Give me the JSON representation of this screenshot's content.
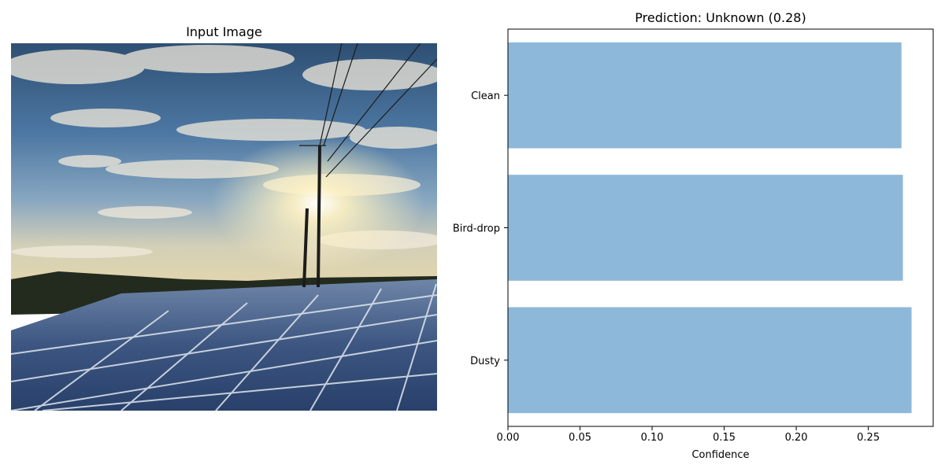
{
  "left_panel": {
    "title": "Input Image",
    "image_description_icon": "solar-panel-photo"
  },
  "chart_data": {
    "type": "bar",
    "orientation": "horizontal",
    "title": "Prediction: Unknown (0.28)",
    "categories": [
      "Dusty",
      "Bird-drop",
      "Clean"
    ],
    "values": [
      0.28,
      0.274,
      0.273
    ],
    "xlabel": "Confidence",
    "ylabel": "",
    "xlim": [
      0,
      0.295
    ],
    "xticks": [
      0.0,
      0.05,
      0.1,
      0.15,
      0.2,
      0.25
    ],
    "xtick_labels": [
      "0.00",
      "0.05",
      "0.10",
      "0.15",
      "0.20",
      "0.25"
    ],
    "grid": false,
    "bar_color": "#8db8da"
  }
}
